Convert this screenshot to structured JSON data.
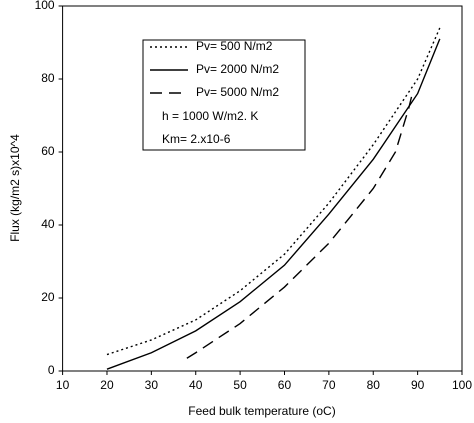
{
  "chart_data": {
    "type": "line",
    "xlabel": "Feed bulk temperature (oC)",
    "ylabel": "Flux (kg/m2 s)x10^4",
    "xlim": [
      10,
      100
    ],
    "ylim": [
      0,
      100
    ],
    "xticks": [
      10,
      20,
      30,
      40,
      50,
      60,
      70,
      80,
      90,
      100
    ],
    "yticks": [
      0,
      20,
      40,
      60,
      80,
      100
    ],
    "series": [
      {
        "name": "Pv= 500 N/m2",
        "color": "#000000",
        "dash": "2,3",
        "x": [
          20,
          30,
          40,
          50,
          60,
          70,
          80,
          90,
          95
        ],
        "values": [
          4.5,
          8.5,
          14,
          22,
          32,
          46,
          62,
          80,
          94
        ]
      },
      {
        "name": "Pv= 2000 N/m2",
        "color": "#000000",
        "dash": "none",
        "x": [
          20,
          30,
          40,
          50,
          60,
          70,
          80,
          90,
          95
        ],
        "values": [
          0.5,
          5,
          11,
          19,
          29,
          43,
          58,
          76,
          91
        ]
      },
      {
        "name": "Pv= 5000 N/m2",
        "color": "#000000",
        "dash": "12,7",
        "x": [
          38,
          40,
          50,
          60,
          70,
          80,
          85,
          88,
          89
        ],
        "values": [
          3.5,
          5,
          13,
          23,
          35,
          50,
          60,
          72,
          77
        ]
      }
    ],
    "annotations": [
      "h = 1000 W/m2. K",
      "Km= 2.x10-6"
    ]
  }
}
